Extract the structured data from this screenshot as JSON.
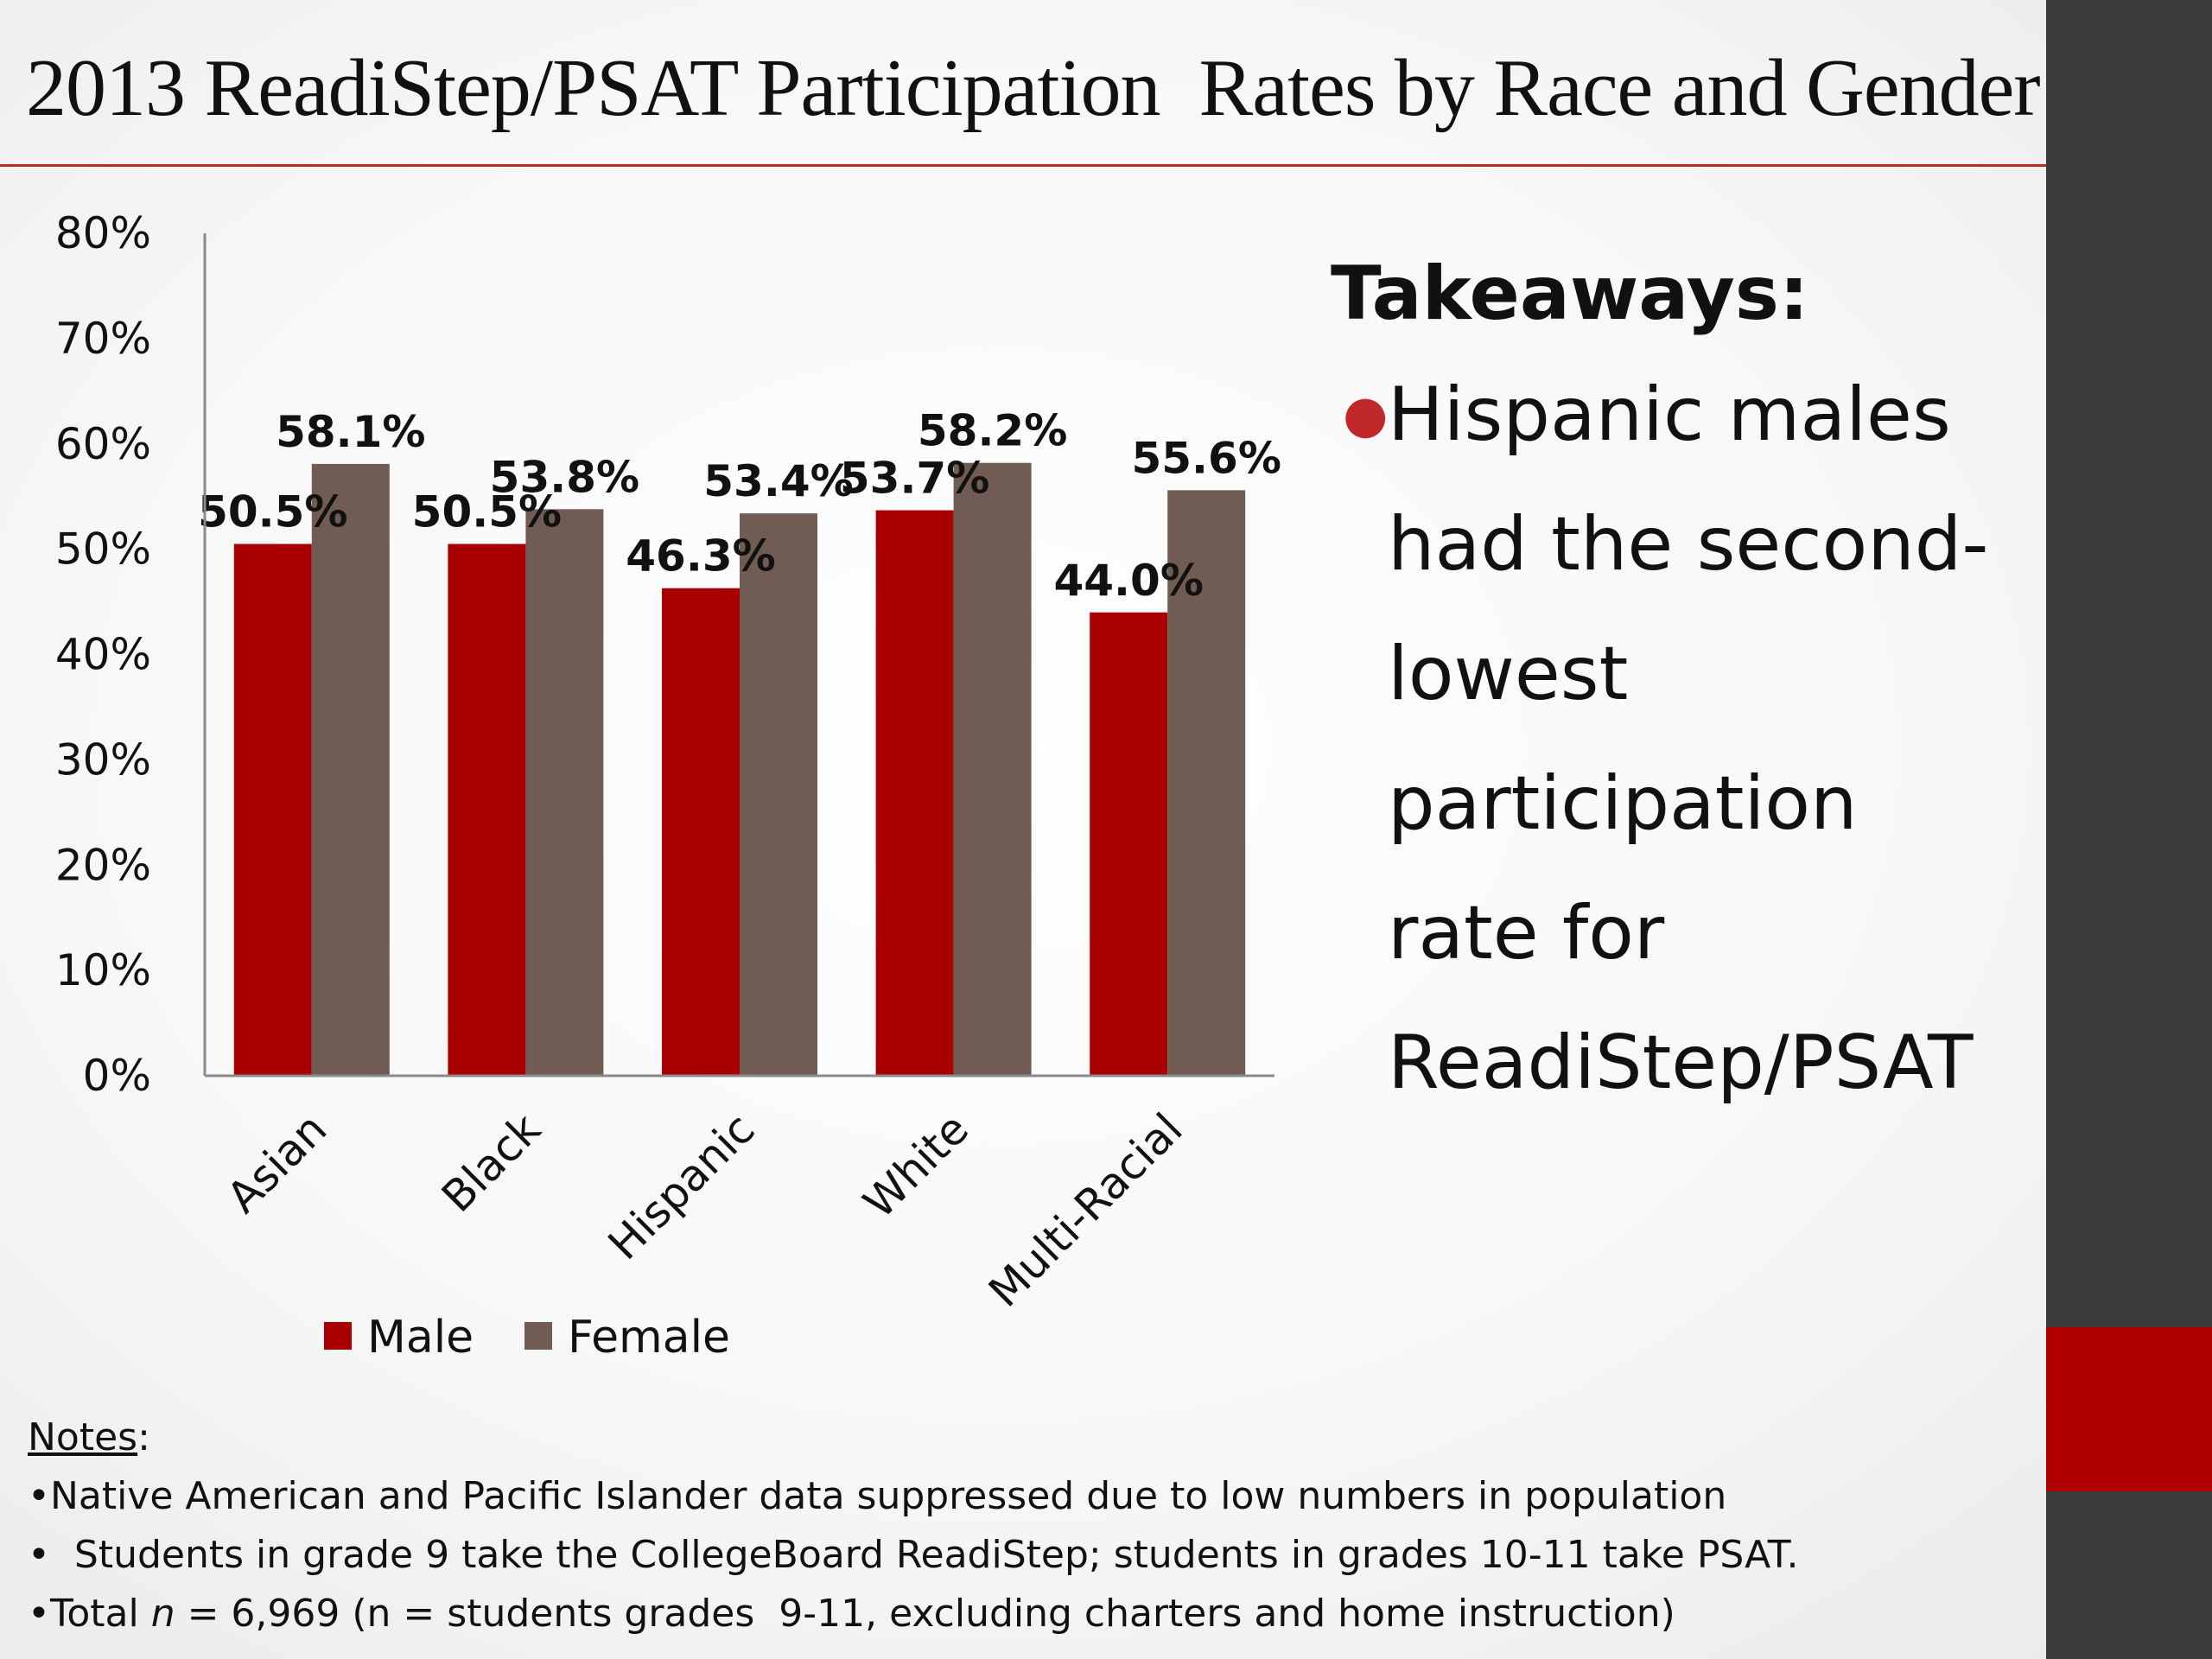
{
  "title": "2013 ReadiStep/PSAT Participation  Rates by Race and Gender",
  "colors": {
    "male": "#a80000",
    "female": "#705c52",
    "accent": "#c0282a"
  },
  "chart_data": {
    "type": "bar",
    "title": "",
    "xlabel": "",
    "ylabel": "",
    "categories": [
      "Asian",
      "Black",
      "Hispanic",
      "White",
      "Multi-Racial"
    ],
    "series": [
      {
        "name": "Male",
        "values": [
          50.5,
          50.5,
          46.3,
          53.7,
          44.0
        ],
        "labels": [
          "50.5%",
          "50.5%",
          "46.3%",
          "53.7%",
          "44.0%"
        ]
      },
      {
        "name": "Female",
        "values": [
          58.1,
          53.8,
          53.4,
          58.2,
          55.6
        ],
        "labels": [
          "58.1%",
          "53.8%",
          "53.4%",
          "58.2%",
          "55.6%"
        ]
      }
    ],
    "ylim": [
      0,
      80
    ],
    "yticks": [
      0,
      10,
      20,
      30,
      40,
      50,
      60,
      70,
      80
    ],
    "ytick_labels": [
      "0%",
      "10%",
      "20%",
      "30%",
      "40%",
      "50%",
      "60%",
      "70%",
      "80%"
    ],
    "grid": false,
    "legend": "bottom"
  },
  "takeaways": {
    "title": "Takeaways:",
    "bullet_lines": [
      "Hispanic males",
      "had the second-",
      "lowest",
      "participation",
      "rate for",
      "ReadiStep/PSAT"
    ]
  },
  "notes": {
    "heading": "Notes",
    "heading_suffix": ":",
    "lines": [
      "•Native American and Pacific Islander data suppressed due to low numbers in population",
      "•  Students in grade 9 take the CollegeBoard ReadiStep; students in grades 10-11 take PSAT."
    ],
    "total_prefix": "•Total ",
    "total_n": "n",
    "total_suffix": " = 6,969 (n = students grades  9-11, excluding charters and home instruction)"
  }
}
